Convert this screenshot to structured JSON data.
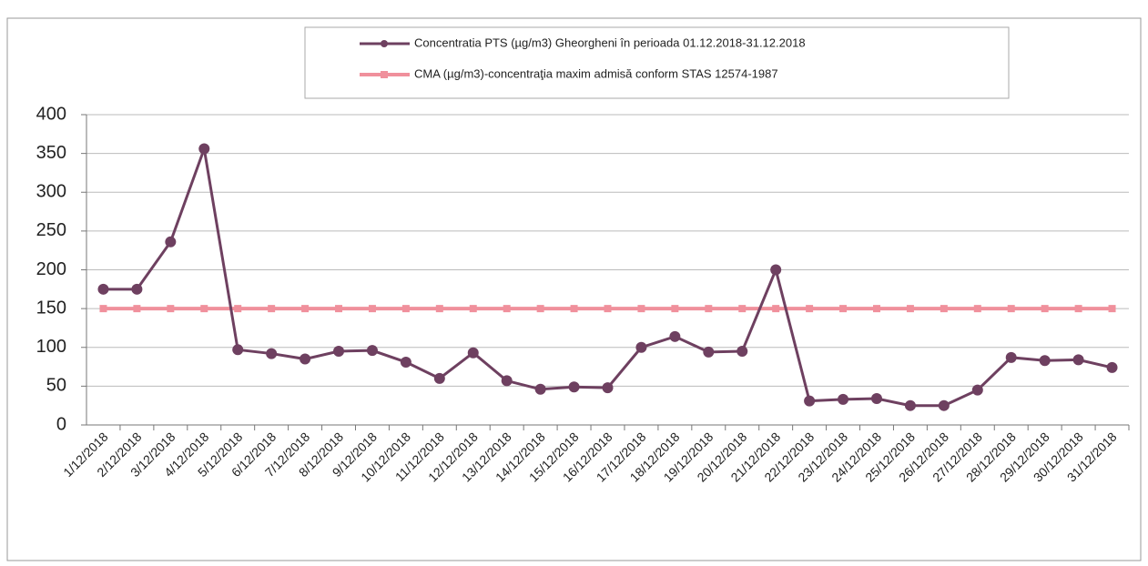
{
  "chart_data": {
    "type": "line",
    "categories": [
      "1/12/2018",
      "2/12/2018",
      "3/12/2018",
      "4/12/2018",
      "5/12/2018",
      "6/12/2018",
      "7/12/2018",
      "8/12/2018",
      "9/12/2018",
      "10/12/2018",
      "11/12/2018",
      "12/12/2018",
      "13/12/2018",
      "14/12/2018",
      "15/12/2018",
      "16/12/2018",
      "17/12/2018",
      "18/12/2018",
      "19/12/2018",
      "20/12/2018",
      "21/12/2018",
      "22/12/2018",
      "23/12/2018",
      "24/12/2018",
      "25/12/2018",
      "26/12/2018",
      "27/12/2018",
      "28/12/2018",
      "29/12/2018",
      "30/12/2018",
      "31/12/2018"
    ],
    "series": [
      {
        "name": "Concentratia PTS (µg/m3) Gheorgheni în perioada 01.12.2018-31.12.2018",
        "color": "#6e4060",
        "marker": "circle",
        "values": [
          175,
          175,
          236,
          356,
          97,
          92,
          85,
          95,
          96,
          81,
          60,
          93,
          57,
          46,
          49,
          48,
          100,
          114,
          94,
          95,
          200,
          31,
          33,
          34,
          25,
          25,
          45,
          87,
          83,
          84,
          74
        ]
      },
      {
        "name": "CMA (µg/m3)-concentraţia maxim admisă conform STAS 12574-1987",
        "color": "#f0909c",
        "marker": "square",
        "values": [
          150,
          150,
          150,
          150,
          150,
          150,
          150,
          150,
          150,
          150,
          150,
          150,
          150,
          150,
          150,
          150,
          150,
          150,
          150,
          150,
          150,
          150,
          150,
          150,
          150,
          150,
          150,
          150,
          150,
          150,
          150
        ]
      }
    ],
    "ylim": [
      0,
      400
    ],
    "yticks": [
      0,
      50,
      100,
      150,
      200,
      250,
      300,
      350,
      400
    ],
    "grid": true
  }
}
